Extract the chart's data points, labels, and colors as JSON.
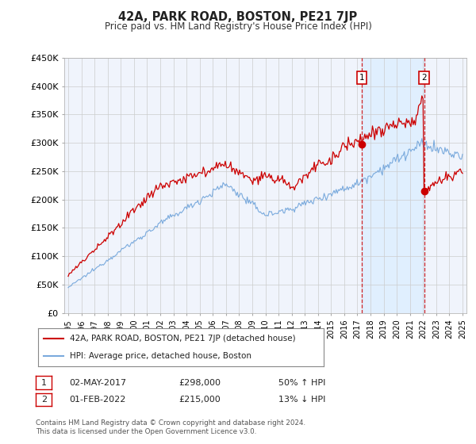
{
  "title": "42A, PARK ROAD, BOSTON, PE21 7JP",
  "subtitle": "Price paid vs. HM Land Registry's House Price Index (HPI)",
  "footer": "Contains HM Land Registry data © Crown copyright and database right 2024.\nThis data is licensed under the Open Government Licence v3.0.",
  "legend_label_red": "42A, PARK ROAD, BOSTON, PE21 7JP (detached house)",
  "legend_label_blue": "HPI: Average price, detached house, Boston",
  "annotation1": {
    "label": "1",
    "date": "02-MAY-2017",
    "price": "£298,000",
    "hpi": "50% ↑ HPI",
    "x_year": 2017.33,
    "y_val": 298000
  },
  "annotation2": {
    "label": "2",
    "date": "01-FEB-2022",
    "price": "£215,000",
    "hpi": "13% ↓ HPI",
    "x_year": 2022.08,
    "y_val": 215000
  },
  "ylim": [
    0,
    450000
  ],
  "xlim": [
    1994.7,
    2025.3
  ],
  "yticks": [
    0,
    50000,
    100000,
    150000,
    200000,
    250000,
    300000,
    350000,
    400000,
    450000
  ],
  "ytick_labels": [
    "£0",
    "£50K",
    "£100K",
    "£150K",
    "£200K",
    "£250K",
    "£300K",
    "£350K",
    "£400K",
    "£450K"
  ],
  "red_color": "#cc0000",
  "blue_color": "#7aaadd",
  "shade_color": "#ddeeff",
  "annotation_box_color": "#cc0000",
  "background_plot": "#f0f4fc",
  "background_fig": "#ffffff",
  "grid_color": "#cccccc"
}
